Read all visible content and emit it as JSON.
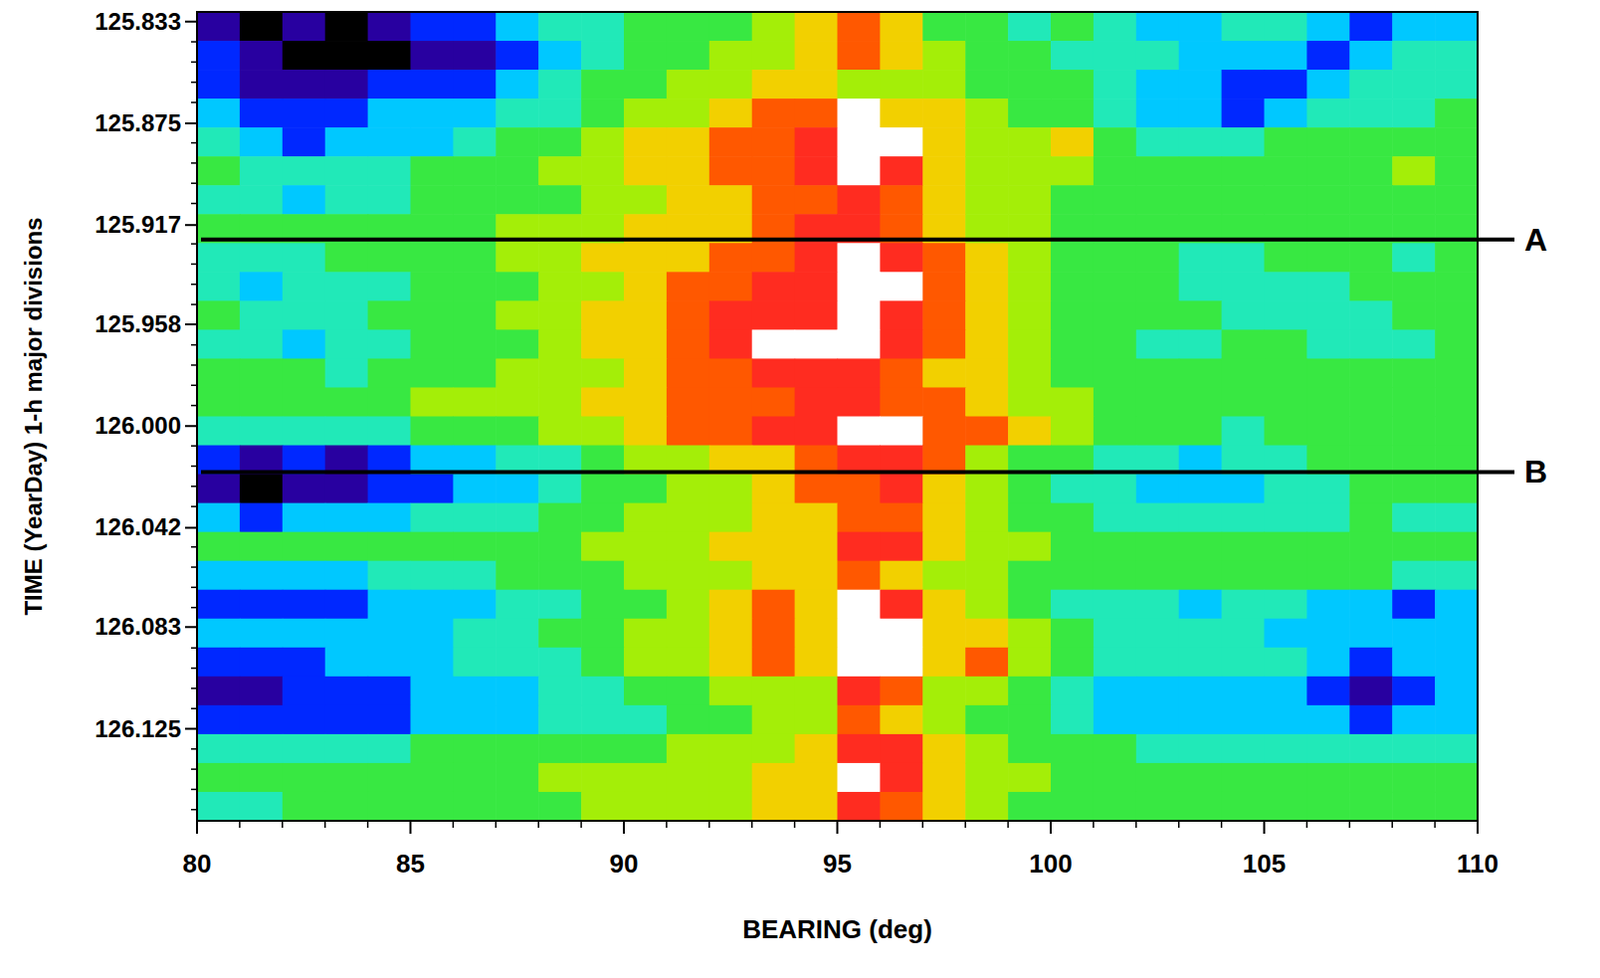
{
  "chart_data": {
    "type": "heatmap",
    "x_label": "BEARING (deg)",
    "y_label": "TIME (YearDay) 1-h major divisions",
    "xlim": [
      80,
      110
    ],
    "xticks": [
      80,
      85,
      90,
      95,
      100,
      105,
      110
    ],
    "ylim": [
      125.829,
      126.163
    ],
    "yticks": [
      125.833,
      125.875,
      125.917,
      125.958,
      {
        "value": 126,
        "label": "126.000"
      },
      126.042,
      126.083,
      126.125
    ],
    "zlim": [
      0,
      10
    ],
    "annotations": [
      {
        "text": "A",
        "y": 125.923
      },
      {
        "text": "B",
        "y": 126.019
      }
    ],
    "cells": [
      [
        1,
        0,
        1,
        0,
        1,
        2,
        2,
        3,
        4,
        4,
        5,
        5,
        5,
        6,
        7,
        8,
        7,
        5,
        5,
        4,
        5,
        4,
        3,
        3,
        4,
        4,
        3,
        2,
        3,
        3
      ],
      [
        2,
        1,
        0,
        0,
        0,
        1,
        1,
        2,
        3,
        4,
        5,
        5,
        6,
        6,
        7,
        8,
        7,
        6,
        5,
        5,
        4,
        4,
        4,
        3,
        3,
        3,
        2,
        3,
        4,
        4
      ],
      [
        2,
        1,
        1,
        1,
        2,
        2,
        2,
        3,
        4,
        5,
        5,
        6,
        6,
        7,
        7,
        6,
        6,
        6,
        5,
        5,
        5,
        4,
        3,
        3,
        2,
        2,
        3,
        4,
        4,
        4
      ],
      [
        3,
        2,
        2,
        2,
        3,
        3,
        3,
        4,
        4,
        5,
        6,
        6,
        7,
        8,
        8,
        10,
        7,
        7,
        6,
        5,
        5,
        4,
        3,
        3,
        2,
        3,
        4,
        4,
        4,
        5
      ],
      [
        4,
        3,
        2,
        3,
        3,
        3,
        4,
        5,
        5,
        6,
        7,
        7,
        8,
        8,
        9,
        10,
        10,
        7,
        6,
        6,
        7,
        5,
        4,
        4,
        4,
        5,
        5,
        5,
        5,
        5
      ],
      [
        5,
        4,
        4,
        4,
        4,
        5,
        5,
        5,
        6,
        6,
        7,
        7,
        8,
        8,
        9,
        10,
        9,
        7,
        6,
        6,
        6,
        5,
        5,
        5,
        5,
        5,
        5,
        5,
        6,
        5
      ],
      [
        4,
        4,
        3,
        4,
        4,
        5,
        5,
        5,
        5,
        6,
        6,
        7,
        7,
        8,
        8,
        9,
        8,
        7,
        6,
        6,
        5,
        5,
        5,
        5,
        5,
        5,
        5,
        5,
        5,
        5
      ],
      [
        5,
        5,
        5,
        5,
        5,
        5,
        5,
        6,
        6,
        6,
        7,
        7,
        7,
        8,
        9,
        9,
        8,
        7,
        6,
        6,
        5,
        5,
        5,
        5,
        5,
        5,
        5,
        5,
        5,
        5
      ],
      [
        4,
        4,
        4,
        5,
        5,
        5,
        5,
        6,
        6,
        7,
        7,
        7,
        8,
        8,
        9,
        10,
        9,
        8,
        7,
        6,
        5,
        5,
        5,
        4,
        4,
        5,
        5,
        5,
        4,
        5
      ],
      [
        4,
        3,
        4,
        4,
        4,
        5,
        5,
        5,
        6,
        6,
        7,
        8,
        8,
        9,
        9,
        10,
        10,
        8,
        7,
        6,
        5,
        5,
        5,
        4,
        4,
        4,
        4,
        5,
        5,
        5
      ],
      [
        5,
        4,
        4,
        4,
        5,
        5,
        5,
        6,
        6,
        7,
        7,
        8,
        9,
        9,
        9,
        10,
        9,
        8,
        7,
        6,
        5,
        5,
        5,
        5,
        4,
        4,
        4,
        4,
        5,
        5
      ],
      [
        4,
        4,
        3,
        4,
        4,
        5,
        5,
        5,
        6,
        7,
        7,
        8,
        9,
        10,
        10,
        10,
        9,
        8,
        7,
        6,
        5,
        5,
        4,
        4,
        5,
        5,
        4,
        4,
        4,
        5
      ],
      [
        5,
        5,
        5,
        4,
        5,
        5,
        5,
        6,
        6,
        6,
        7,
        8,
        8,
        9,
        9,
        9,
        8,
        7,
        7,
        6,
        5,
        5,
        5,
        5,
        5,
        5,
        5,
        5,
        5,
        5
      ],
      [
        5,
        5,
        5,
        5,
        5,
        6,
        6,
        6,
        6,
        7,
        7,
        8,
        8,
        8,
        9,
        9,
        8,
        8,
        7,
        6,
        6,
        5,
        5,
        5,
        5,
        5,
        5,
        5,
        5,
        5
      ],
      [
        4,
        4,
        4,
        4,
        4,
        5,
        5,
        5,
        6,
        6,
        7,
        8,
        8,
        9,
        9,
        10,
        10,
        8,
        8,
        7,
        6,
        5,
        5,
        5,
        4,
        5,
        5,
        5,
        5,
        5
      ],
      [
        2,
        1,
        2,
        1,
        2,
        3,
        3,
        4,
        4,
        5,
        6,
        6,
        7,
        7,
        8,
        9,
        9,
        8,
        6,
        5,
        5,
        4,
        4,
        3,
        4,
        4,
        5,
        5,
        5,
        5
      ],
      [
        1,
        0,
        1,
        1,
        2,
        2,
        3,
        3,
        4,
        5,
        5,
        6,
        6,
        7,
        8,
        8,
        9,
        7,
        6,
        5,
        4,
        4,
        3,
        3,
        3,
        4,
        4,
        5,
        5,
        5
      ],
      [
        3,
        2,
        3,
        3,
        3,
        4,
        4,
        4,
        5,
        5,
        6,
        6,
        6,
        7,
        7,
        8,
        8,
        7,
        6,
        5,
        5,
        4,
        4,
        4,
        4,
        4,
        4,
        5,
        4,
        4
      ],
      [
        5,
        5,
        5,
        5,
        5,
        5,
        5,
        5,
        5,
        6,
        6,
        6,
        7,
        7,
        7,
        9,
        9,
        7,
        6,
        6,
        5,
        5,
        5,
        5,
        5,
        5,
        5,
        5,
        5,
        5
      ],
      [
        3,
        3,
        3,
        3,
        4,
        4,
        4,
        5,
        5,
        5,
        6,
        6,
        6,
        7,
        7,
        8,
        7,
        6,
        6,
        5,
        5,
        5,
        5,
        5,
        5,
        5,
        5,
        5,
        4,
        4
      ],
      [
        2,
        2,
        2,
        2,
        3,
        3,
        3,
        4,
        4,
        5,
        5,
        6,
        7,
        8,
        7,
        10,
        9,
        7,
        6,
        5,
        4,
        4,
        4,
        3,
        4,
        4,
        3,
        3,
        2,
        3
      ],
      [
        3,
        3,
        3,
        3,
        3,
        3,
        4,
        4,
        5,
        5,
        6,
        6,
        7,
        8,
        7,
        10,
        10,
        7,
        7,
        6,
        5,
        4,
        4,
        4,
        4,
        3,
        3,
        3,
        3,
        3
      ],
      [
        2,
        2,
        2,
        3,
        3,
        3,
        4,
        4,
        4,
        5,
        6,
        6,
        7,
        8,
        7,
        10,
        10,
        7,
        8,
        6,
        5,
        4,
        4,
        4,
        4,
        4,
        3,
        2,
        3,
        3
      ],
      [
        1,
        1,
        2,
        2,
        2,
        3,
        3,
        3,
        4,
        4,
        5,
        5,
        6,
        6,
        6,
        9,
        8,
        6,
        6,
        5,
        4,
        3,
        3,
        3,
        3,
        3,
        2,
        1,
        2,
        3
      ],
      [
        2,
        2,
        2,
        2,
        2,
        3,
        3,
        3,
        4,
        4,
        4,
        5,
        5,
        6,
        6,
        8,
        7,
        6,
        5,
        5,
        4,
        3,
        3,
        3,
        3,
        3,
        3,
        2,
        3,
        3
      ],
      [
        4,
        4,
        4,
        4,
        4,
        5,
        5,
        5,
        5,
        5,
        5,
        6,
        6,
        6,
        7,
        9,
        9,
        7,
        6,
        5,
        5,
        5,
        4,
        4,
        4,
        4,
        4,
        4,
        4,
        4
      ],
      [
        5,
        5,
        5,
        5,
        5,
        5,
        5,
        5,
        6,
        6,
        6,
        6,
        6,
        7,
        7,
        10,
        9,
        7,
        6,
        6,
        5,
        5,
        5,
        5,
        5,
        5,
        5,
        5,
        5,
        5
      ],
      [
        4,
        4,
        5,
        5,
        5,
        5,
        5,
        5,
        5,
        6,
        6,
        6,
        6,
        7,
        7,
        9,
        8,
        7,
        6,
        5,
        5,
        5,
        5,
        5,
        5,
        5,
        5,
        5,
        5,
        5
      ]
    ]
  }
}
